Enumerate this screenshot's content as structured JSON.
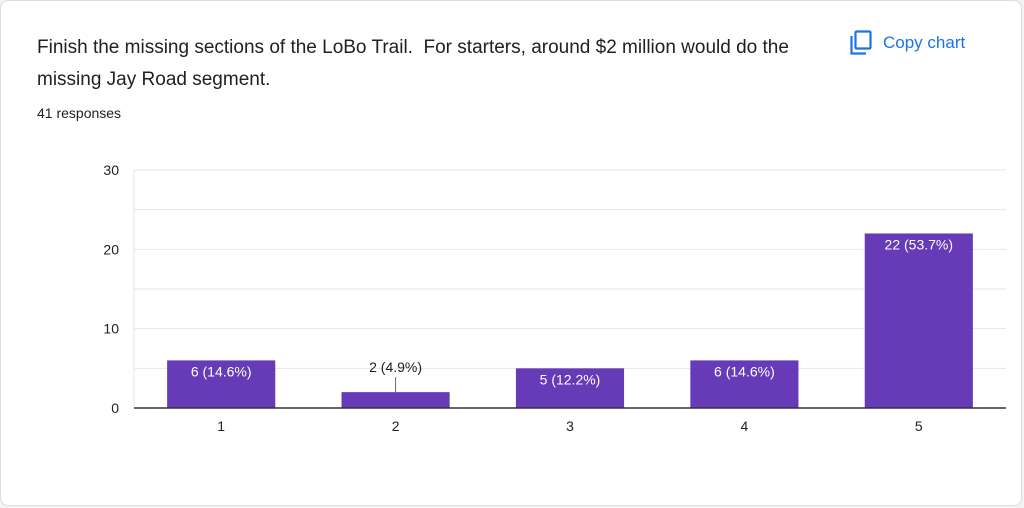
{
  "question": {
    "title": "Finish the missing sections of the LoBo Trail.  For starters, around $2 million would do the missing Jay Road segment.",
    "responses": "41 responses"
  },
  "toolbar": {
    "copy_label": "Copy chart",
    "copy_icon": "copy-icon"
  },
  "colors": {
    "bar": "#673ab7",
    "accent": "#1a73e8",
    "grid": "#e6e6e6",
    "axis": "#333333"
  },
  "chart_data": {
    "type": "bar",
    "categories": [
      "1",
      "2",
      "3",
      "4",
      "5"
    ],
    "values": [
      6,
      2,
      5,
      6,
      22
    ],
    "data_labels": [
      "6 (14.6%)",
      "2 (4.9%)",
      "5 (12.2%)",
      "6 (14.6%)",
      "22 (53.7%)"
    ],
    "ylim": [
      0,
      30
    ],
    "yticks": [
      0,
      10,
      20,
      30
    ],
    "minor_grid_step": 5,
    "grid": true,
    "legend": "none",
    "title": "",
    "xlabel": "",
    "ylabel": ""
  }
}
